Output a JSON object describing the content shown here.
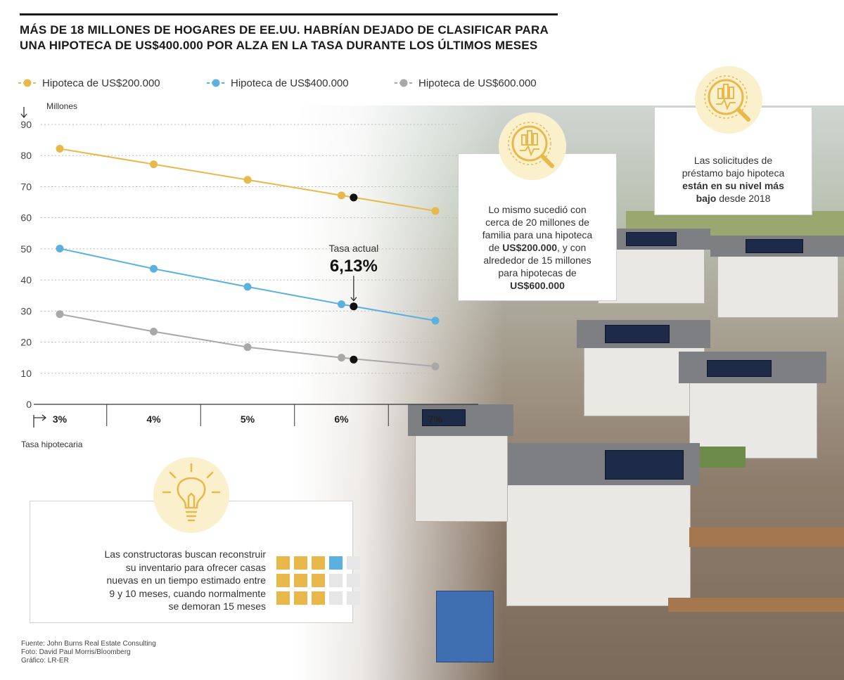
{
  "headline": "MÁS DE 18 MILLONES DE HOGARES DE EE.UU. HABRÍAN DEJADO DE CLASIFICAR PARA UNA HIPOTECA DE US$400.000 POR ALZA EN LA TASA DURANTE LOS ÚLTIMOS MESES",
  "colors": {
    "series_200": "#e8b84a",
    "series_400": "#5ab0df",
    "series_600": "#a8a8a8",
    "marker": "#111111",
    "cell_yellow": "#e8b84a",
    "cell_blue": "#5ab0df",
    "cell_gray": "#e6e6e6"
  },
  "chart_data": {
    "type": "line",
    "y_unit_label": "Millones",
    "x_axis_label": "Tasa hipotecaria",
    "x": [
      3,
      4,
      5,
      6,
      7
    ],
    "categories": [
      "3%",
      "4%",
      "5%",
      "6%",
      "7%"
    ],
    "yticks": [
      "90",
      "80",
      "70",
      "60",
      "50",
      "40",
      "30",
      "20",
      "10",
      "0"
    ],
    "ylim": [
      0,
      90
    ],
    "grid": true,
    "legend_position": "top",
    "series": [
      {
        "name": "Hipoteca de US$200.000",
        "values": [
          82.2,
          77.2,
          72.2,
          67.2,
          62.2
        ]
      },
      {
        "name": "Hipoteca de US$400.000",
        "values": [
          50.1,
          43.6,
          37.8,
          32.2,
          26.9
        ]
      },
      {
        "name": "Hipoteca de US$600.000",
        "values": [
          29.0,
          23.4,
          18.4,
          15.0,
          12.2
        ]
      }
    ],
    "current_rate": {
      "label": "Tasa actual",
      "value_label": "6,13%",
      "x": 6.13,
      "values": [
        66.5,
        31.5,
        14.4
      ]
    }
  },
  "callouts": {
    "mid": {
      "line1": "Lo mismo sucedió con",
      "line2": "cerca de 20 millones de",
      "line3": "familia para una hipoteca",
      "line4_pre": "de ",
      "line4_bold": "US$200.000",
      "line4_post": ", y con",
      "line5": "alrededor de 15 millones",
      "line6": "para hipotecas de",
      "line7_bold": "US$600.000"
    },
    "right": {
      "line1": "Las solicitudes de",
      "line2": "préstamo bajo hipoteca",
      "line3_bold": "están en su nivel más",
      "line4_bold": "bajo",
      "line4_post": " desde 2018"
    }
  },
  "note": {
    "line1": "Las constructoras buscan reconstruir",
    "line2": "su inventario para ofrecer casas",
    "line3": "nuevas en un tiempo estimado entre",
    "line4": "9 y 10 meses, cuando normalmente",
    "line5": "se demoran 15 meses",
    "cells": [
      "y",
      "y",
      "y",
      "b",
      "g",
      "y",
      "y",
      "y",
      "g",
      "g",
      "y",
      "y",
      "y",
      "g",
      "g"
    ]
  },
  "credits": {
    "source": "Fuente: John Burns Real Estate Consulting",
    "photo": "Foto: David Paul Morris/Bloomberg",
    "graphic": "Gráfico: LR-ER"
  }
}
